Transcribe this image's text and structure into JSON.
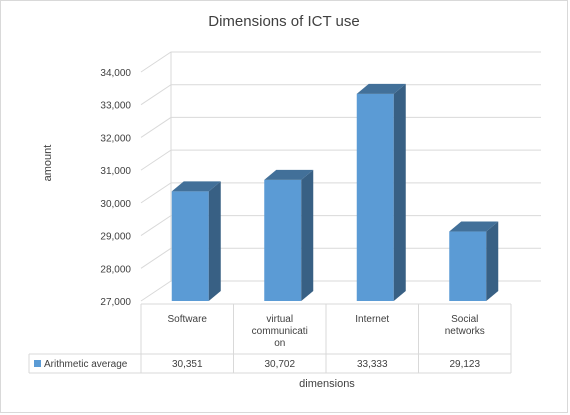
{
  "chart_data": {
    "type": "bar",
    "title": "Dimensions of ICT use",
    "xlabel": "dimensions",
    "ylabel": "amount",
    "categories": [
      "Software",
      "virtual communication",
      "Internet",
      "Social networks"
    ],
    "category_display_lines": [
      [
        "Software"
      ],
      [
        "virtual",
        "communicati",
        "on"
      ],
      [
        "Internet"
      ],
      [
        "Social",
        "networks"
      ]
    ],
    "series": [
      {
        "name": "Arithmetic average",
        "values": [
          30351,
          30702,
          33333,
          29123
        ],
        "color": "#5B9BD5"
      }
    ],
    "value_labels": [
      "30,351",
      "30,702",
      "33,333",
      "29,123"
    ],
    "yticks": [
      "27,000",
      "28,000",
      "29,000",
      "30,000",
      "31,000",
      "32,000",
      "33,000",
      "34,000"
    ],
    "ylim": [
      27000,
      34000
    ],
    "grid": true,
    "legend": "data-table"
  }
}
